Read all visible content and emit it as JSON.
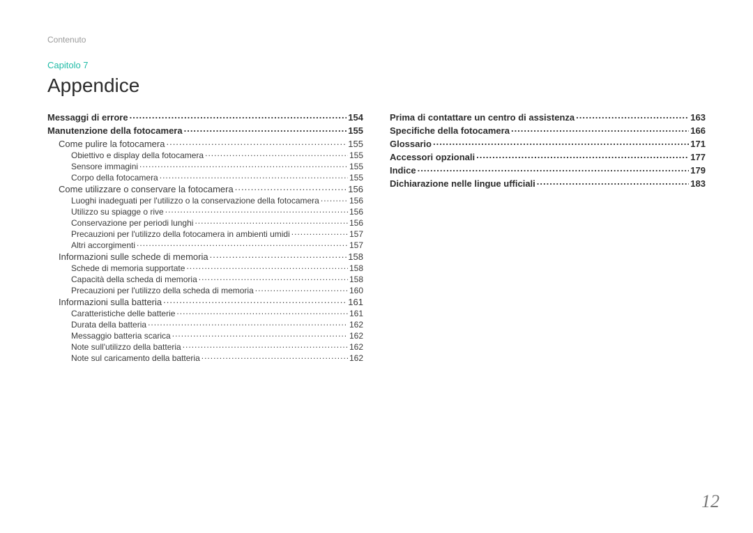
{
  "header": "Contenuto",
  "chapter": "Capitolo 7",
  "title": "Appendice",
  "page_number": "12",
  "colors": {
    "accent": "#1fbba6",
    "text": "#3a3a3a",
    "muted": "#9a9a9a",
    "background": "#ffffff"
  },
  "typography": {
    "title_fontsize": 28,
    "chapter_fontsize": 13,
    "header_fontsize": 12,
    "lvl0_fontsize": 13,
    "lvl1_fontsize": 13,
    "lvl2_fontsize": 12,
    "page_number_fontsize": 26
  },
  "left_column": [
    {
      "level": 0,
      "label": "Messaggi di errore",
      "page": "154"
    },
    {
      "level": 0,
      "label": "Manutenzione della fotocamera",
      "page": "155"
    },
    {
      "level": 1,
      "label": "Come pulire la fotocamera",
      "page": "155"
    },
    {
      "level": 2,
      "label": "Obiettivo e display della fotocamera",
      "page": "155"
    },
    {
      "level": 2,
      "label": "Sensore immagini",
      "page": "155"
    },
    {
      "level": 2,
      "label": "Corpo della fotocamera",
      "page": "155"
    },
    {
      "level": 1,
      "label": "Come utilizzare o conservare la fotocamera",
      "page": "156"
    },
    {
      "level": 2,
      "label": "Luoghi inadeguati per l'utilizzo o la conservazione della fotocamera",
      "page": "156"
    },
    {
      "level": 2,
      "label": "Utilizzo su spiagge o rive",
      "page": "156"
    },
    {
      "level": 2,
      "label": "Conservazione per periodi lunghi",
      "page": "156"
    },
    {
      "level": 2,
      "label": "Precauzioni per l'utilizzo della fotocamera in ambienti umidi",
      "page": "157"
    },
    {
      "level": 2,
      "label": "Altri accorgimenti",
      "page": "157"
    },
    {
      "level": 1,
      "label": "Informazioni sulle schede di memoria",
      "page": "158"
    },
    {
      "level": 2,
      "label": "Schede di memoria supportate",
      "page": "158"
    },
    {
      "level": 2,
      "label": "Capacità della scheda di memoria",
      "page": "158"
    },
    {
      "level": 2,
      "label": "Precauzioni per l'utilizzo della scheda di memoria",
      "page": "160"
    },
    {
      "level": 1,
      "label": "Informazioni sulla batteria",
      "page": "161"
    },
    {
      "level": 2,
      "label": "Caratteristiche delle batterie",
      "page": "161"
    },
    {
      "level": 2,
      "label": "Durata della batteria",
      "page": "162"
    },
    {
      "level": 2,
      "label": "Messaggio batteria scarica",
      "page": "162"
    },
    {
      "level": 2,
      "label": "Note sull'utilizzo della batteria",
      "page": "162"
    },
    {
      "level": 2,
      "label": "Note sul caricamento della batteria",
      "page": "162"
    }
  ],
  "right_column": [
    {
      "level": 0,
      "label": "Prima di contattare un centro di assistenza",
      "page": "163"
    },
    {
      "level": 0,
      "label": "Specifiche della fotocamera",
      "page": "166"
    },
    {
      "level": 0,
      "label": "Glossario",
      "page": "171"
    },
    {
      "level": 0,
      "label": "Accessori opzionali",
      "page": "177"
    },
    {
      "level": 0,
      "label": "Indice",
      "page": "179"
    },
    {
      "level": 0,
      "label": "Dichiarazione nelle lingue ufficiali",
      "page": "183"
    }
  ]
}
